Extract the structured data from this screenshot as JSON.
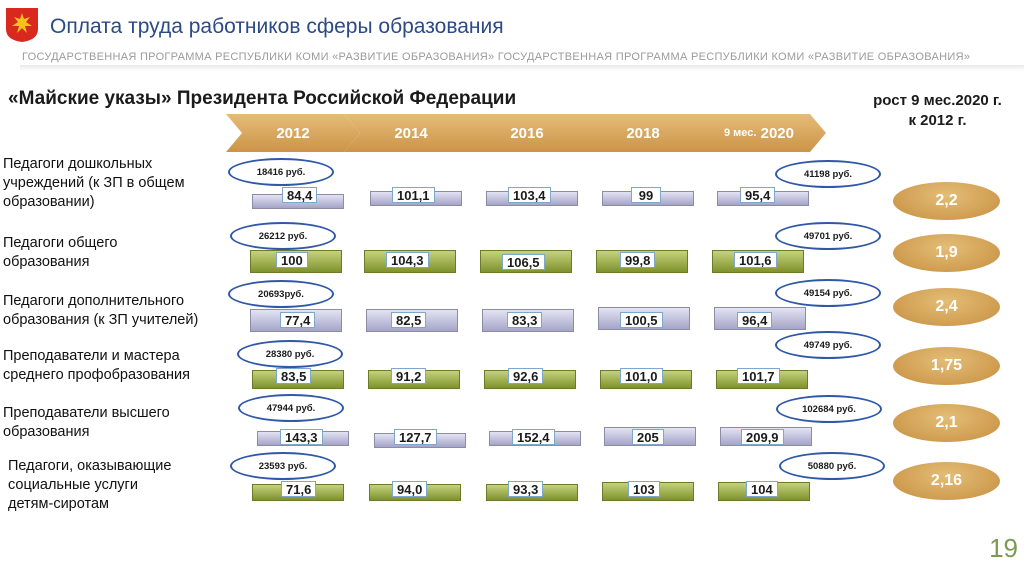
{
  "header": {
    "title": "Оплата труда работников сферы образования",
    "subtitle": "ГОСУДАРСТВЕННАЯ ПРОГРАММА РЕСПУБЛИКИ КОМИ «РАЗВИТИЕ ОБРАЗОВАНИЯ»  ГОСУДАРСТВЕННАЯ ПРОГРАММА РЕСПУБЛИКИ КОМИ «РАЗВИТИЕ ОБРАЗОВАНИЯ»"
  },
  "section_title": "«Майские указы» Президента Российской Федерации",
  "growth_header": [
    "рост 9 мес.2020 г.",
    "к 2012 г."
  ],
  "years": [
    "2012",
    "2014",
    "2016",
    "2018",
    "9 мес.",
    "2020"
  ],
  "rows": [
    {
      "label": [
        "Педагоги дошкольных",
        "учреждений  (к ЗП в общем",
        "образовании)"
      ],
      "salary_start": "18416 руб.",
      "salary_end": "41198 руб.",
      "values": [
        "84,4",
        "101,1",
        "103,4",
        "99",
        "95,4"
      ],
      "growth": "2,2"
    },
    {
      "label": [
        "Педагоги общего",
        "образования"
      ],
      "salary_start": "26212 руб.",
      "salary_end": "49701 руб.",
      "values": [
        "100",
        "104,3",
        "106,5",
        "99,8",
        "101,6"
      ],
      "growth": "1,9"
    },
    {
      "label": [
        "Педагоги дополнительного",
        "образования (к ЗП учителей)"
      ],
      "salary_start": "20693руб.",
      "salary_end": "49154 руб.",
      "values": [
        "77,4",
        "82,5",
        "83,3",
        "100,5",
        "96,4"
      ],
      "growth": "2,4"
    },
    {
      "label": [
        "Преподаватели и мастера",
        "среднего профобразования"
      ],
      "salary_start": "28380 руб.",
      "salary_end": "49749 руб.",
      "values": [
        "83,5",
        "91,2",
        "92,6",
        "101,0",
        "101,7"
      ],
      "growth": "1,75"
    },
    {
      "label": [
        "Преподаватели высшего",
        "образования"
      ],
      "salary_start": "47944 руб.",
      "salary_end": "102684 руб.",
      "values": [
        "143,3",
        "127,7",
        "152,4",
        "205",
        "209,9"
      ],
      "growth": "2,1"
    },
    {
      "label": [
        "Педагоги, оказывающие",
        "социальные услуги",
        "детям-сиротам"
      ],
      "salary_start": "23593 руб.",
      "salary_end": "50880 руб.",
      "values": [
        "71,6",
        "94,0",
        "93,3",
        "103",
        "104"
      ],
      "growth": "2,16"
    }
  ],
  "page_number": "19",
  "colors": {
    "title": "#2b4a86",
    "arrow": "#d9a55c",
    "bar_purple": "#a4a4c8",
    "bar_green": "#7f922c",
    "oval": "#2f58a6",
    "page_number": "#7d9a52"
  }
}
